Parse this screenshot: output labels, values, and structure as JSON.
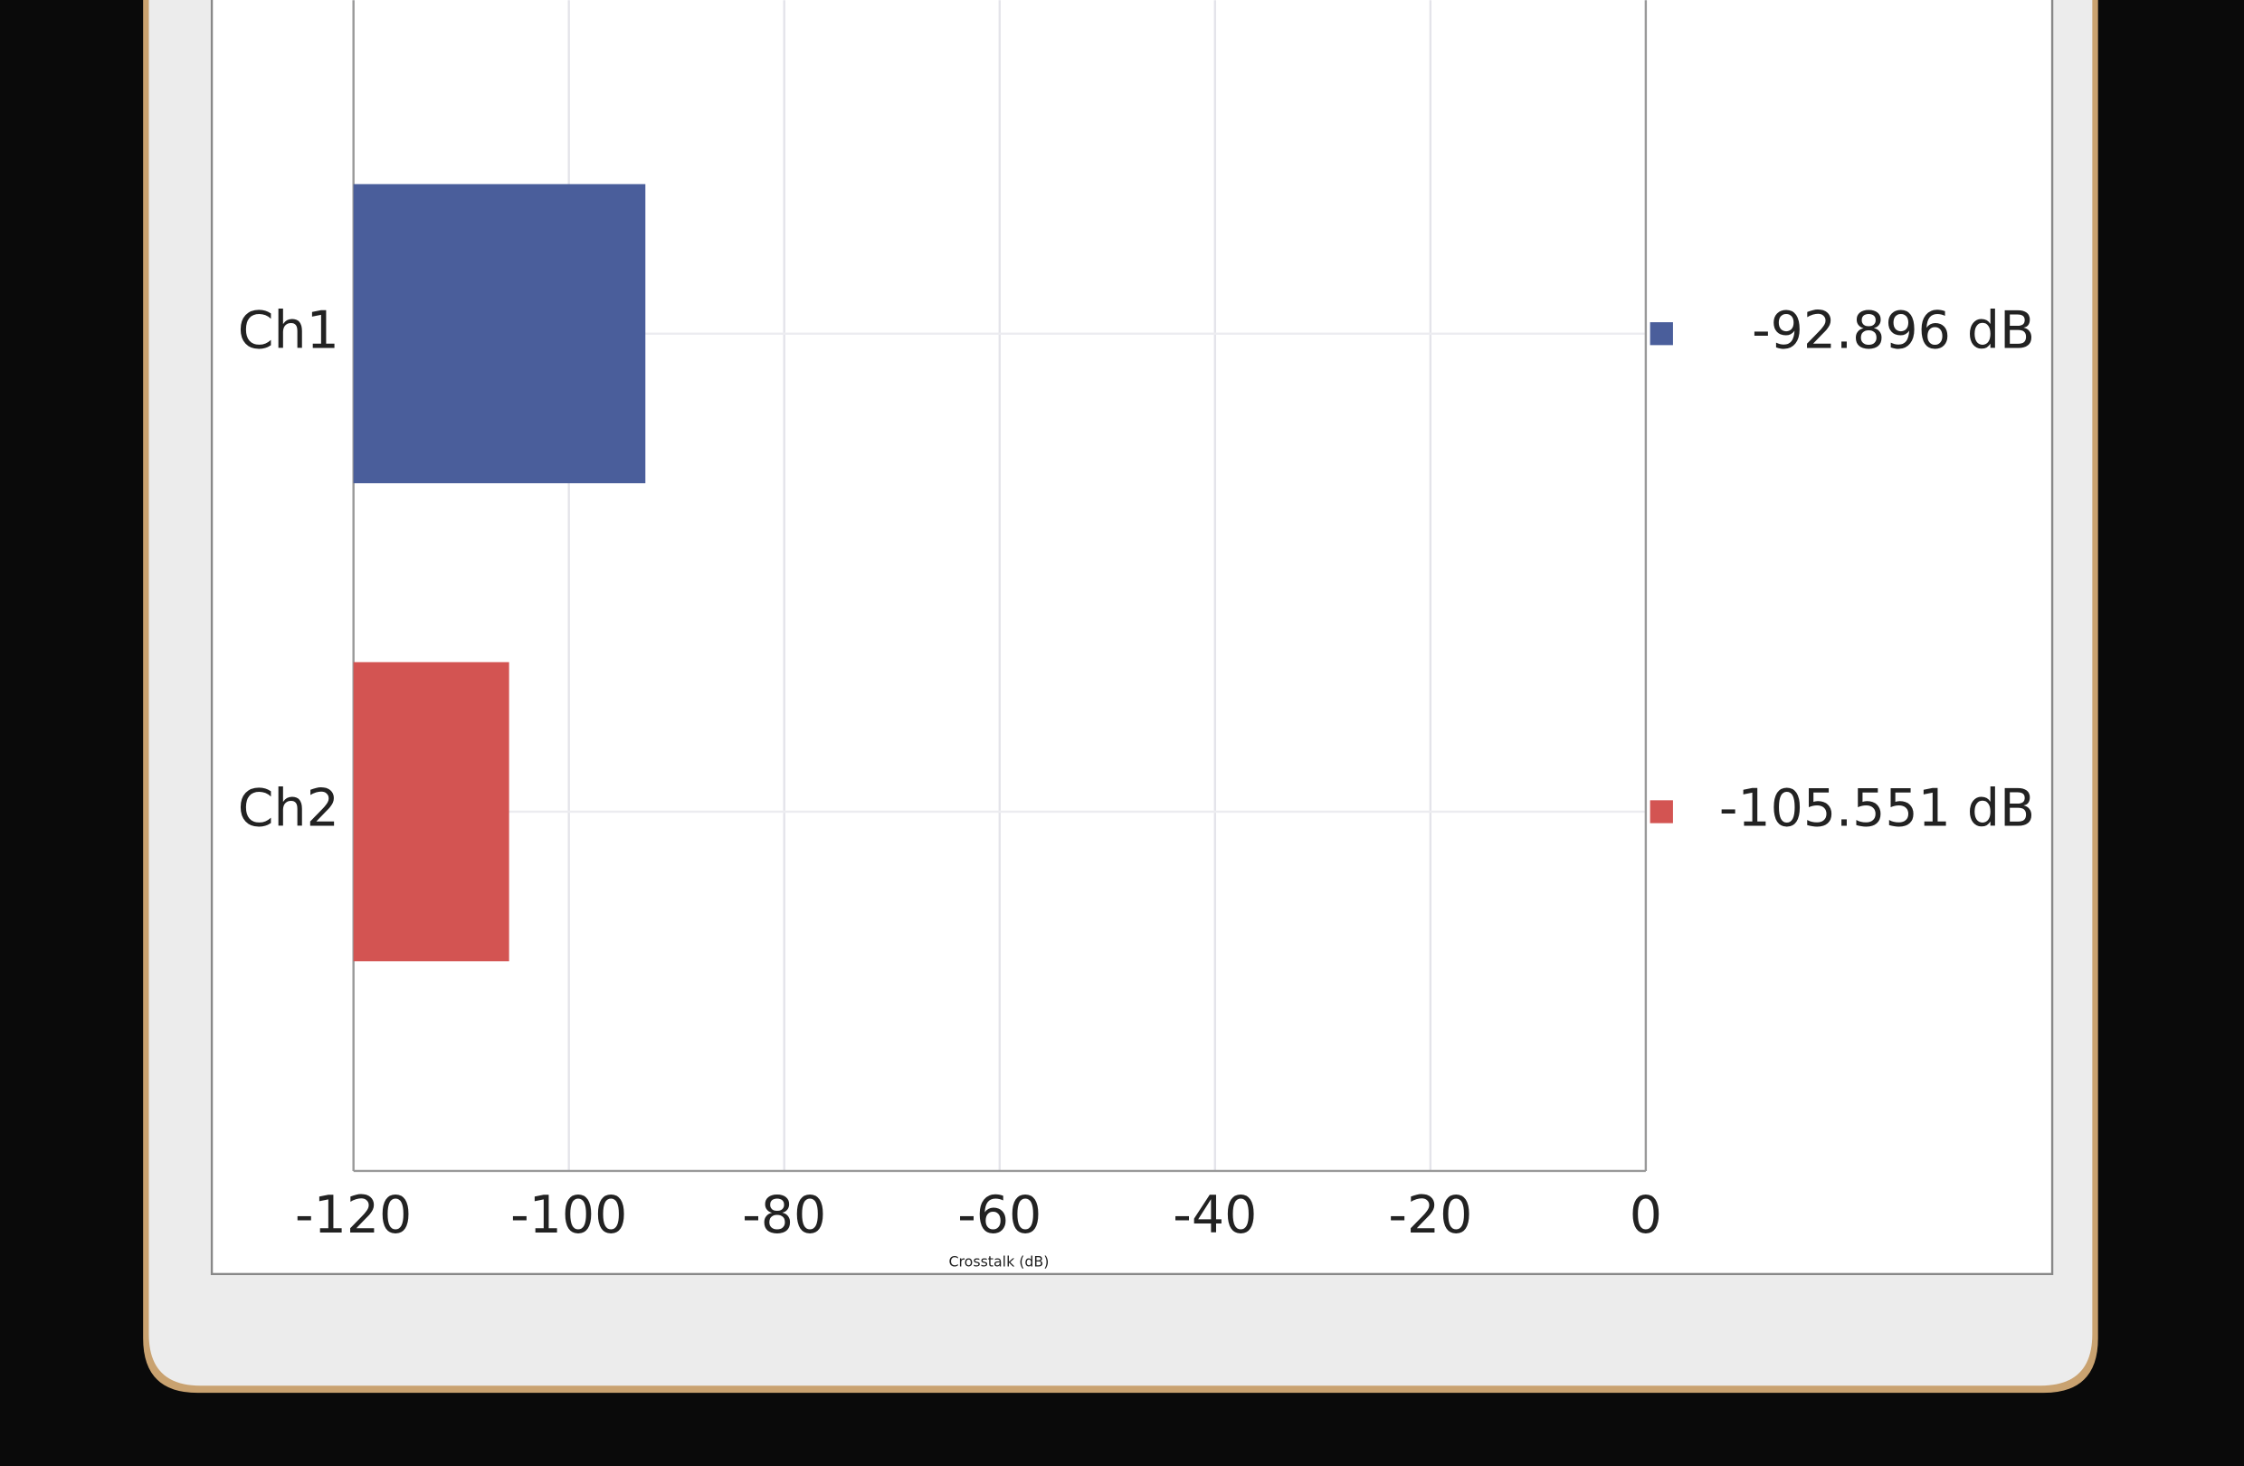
{
  "chart_data": {
    "type": "hbar",
    "x_label": "Crosstalk (dB)",
    "categories": [
      "Ch1",
      "Ch2"
    ],
    "values": [
      -92.896,
      -105.551
    ],
    "value_labels": [
      "-92.896 dB",
      "-105.551 dB"
    ],
    "colors": [
      "#4a5e9b",
      "#d35452"
    ],
    "xlim": [
      -120,
      0
    ],
    "xticks": [
      -120,
      -100,
      -80,
      -60,
      -40,
      -20,
      0
    ],
    "grid": true
  }
}
